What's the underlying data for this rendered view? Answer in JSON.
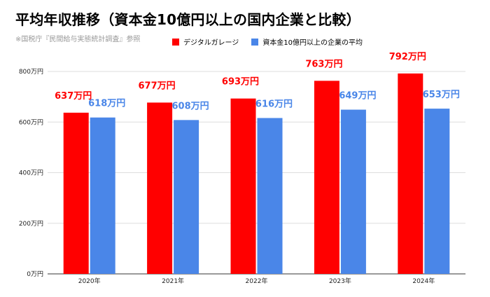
{
  "header": {
    "title": "平均年収推移（資本金10億円以上の国内企業と比較）",
    "source": "※国税庁『民間給与実態統計調査』参照"
  },
  "colors": {
    "series0": "#ff0000",
    "series1": "#4a86e8",
    "grid": "#dddddd",
    "axis": "#333333"
  },
  "chart_data": {
    "type": "bar",
    "title": "平均年収推移（資本金10億円以上の国内企業と比較）",
    "xlabel": "",
    "ylabel": "",
    "categories": [
      "2020年",
      "2021年",
      "2022年",
      "2023年",
      "2024年"
    ],
    "series": [
      {
        "name": "デジタルガレージ",
        "values": [
          637,
          677,
          693,
          763,
          792
        ],
        "labels": [
          "637万円",
          "677万円",
          "693万円",
          "763万円",
          "792万円"
        ]
      },
      {
        "name": "資本金10億円以上の企業の平均",
        "values": [
          618,
          608,
          616,
          649,
          653
        ],
        "labels": [
          "618万円",
          "608万円",
          "616万円",
          "649万円",
          "653万円"
        ]
      }
    ],
    "ylim": [
      0,
      800
    ],
    "yticks": [
      {
        "value": 0,
        "label": "0万円"
      },
      {
        "value": 200,
        "label": "200万円"
      },
      {
        "value": 400,
        "label": "400万円"
      },
      {
        "value": 600,
        "label": "600万円"
      },
      {
        "value": 800,
        "label": "800万円"
      }
    ],
    "grid": true,
    "legend": "top"
  }
}
